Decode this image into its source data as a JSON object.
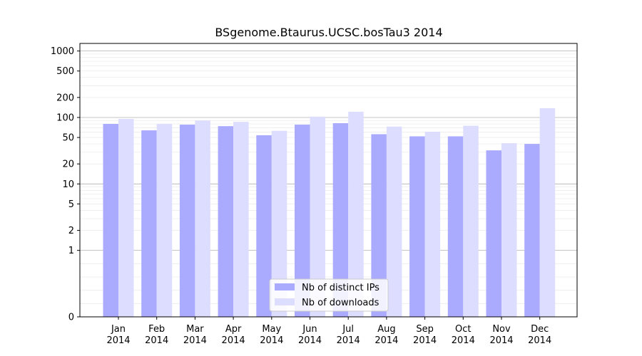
{
  "chart_data": {
    "type": "bar",
    "title": "BSgenome.Btaurus.UCSC.bosTau3 2014",
    "xlabel": "",
    "ylabel": "",
    "yscale": "symlog",
    "yticks": [
      0,
      1,
      2,
      5,
      10,
      20,
      50,
      100,
      200,
      500,
      1000
    ],
    "ytick_labels": [
      "0",
      "1",
      "2",
      "5",
      "10",
      "20",
      "50",
      "100",
      "200",
      "500",
      "1000"
    ],
    "ylim": [
      0,
      1300
    ],
    "grid": "horizontal",
    "legend_placement": "lower-center",
    "categories": [
      [
        "Jan",
        "2014"
      ],
      [
        "Feb",
        "2014"
      ],
      [
        "Mar",
        "2014"
      ],
      [
        "Apr",
        "2014"
      ],
      [
        "May",
        "2014"
      ],
      [
        "Jun",
        "2014"
      ],
      [
        "Jul",
        "2014"
      ],
      [
        "Aug",
        "2014"
      ],
      [
        "Sep",
        "2014"
      ],
      [
        "Oct",
        "2014"
      ],
      [
        "Nov",
        "2014"
      ],
      [
        "Dec",
        "2014"
      ]
    ],
    "series": [
      {
        "name": "Nb of distinct IPs",
        "color": "#aaaaff",
        "values": [
          80,
          64,
          78,
          74,
          54,
          78,
          82,
          56,
          52,
          52,
          32,
          40
        ]
      },
      {
        "name": "Nb of downloads",
        "color": "#ddddff",
        "values": [
          95,
          80,
          90,
          86,
          63,
          103,
          122,
          73,
          61,
          75,
          41,
          138
        ]
      }
    ]
  }
}
